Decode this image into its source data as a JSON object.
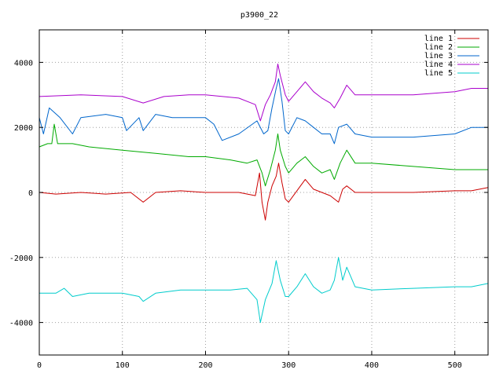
{
  "chart_data": {
    "type": "line",
    "title": "p3900_22",
    "xlabel": "",
    "ylabel": "",
    "xlim": [
      0,
      540
    ],
    "ylim": [
      -5000,
      5000
    ],
    "xticks": [
      0,
      100,
      200,
      300,
      400,
      500
    ],
    "yticks": [
      -4000,
      -2000,
      0,
      2000,
      4000
    ],
    "grid": true,
    "legend_position": "top-right",
    "series": [
      {
        "name": "line 1",
        "color": "#cc0000",
        "points": [
          [
            0,
            0
          ],
          [
            20,
            -50
          ],
          [
            50,
            0
          ],
          [
            80,
            -50
          ],
          [
            110,
            0
          ],
          [
            125,
            -300
          ],
          [
            140,
            0
          ],
          [
            170,
            50
          ],
          [
            200,
            0
          ],
          [
            240,
            0
          ],
          [
            260,
            -100
          ],
          [
            265,
            600
          ],
          [
            268,
            -300
          ],
          [
            272,
            -850
          ],
          [
            275,
            -300
          ],
          [
            280,
            200
          ],
          [
            285,
            500
          ],
          [
            288,
            900
          ],
          [
            292,
            300
          ],
          [
            296,
            -200
          ],
          [
            300,
            -300
          ],
          [
            310,
            50
          ],
          [
            320,
            400
          ],
          [
            330,
            100
          ],
          [
            340,
            0
          ],
          [
            350,
            -100
          ],
          [
            360,
            -300
          ],
          [
            365,
            100
          ],
          [
            370,
            200
          ],
          [
            380,
            0
          ],
          [
            400,
            0
          ],
          [
            450,
            0
          ],
          [
            500,
            50
          ],
          [
            520,
            50
          ],
          [
            540,
            150
          ]
        ]
      },
      {
        "name": "line 2",
        "color": "#00aa00",
        "points": [
          [
            0,
            1400
          ],
          [
            10,
            1500
          ],
          [
            15,
            1500
          ],
          [
            18,
            2100
          ],
          [
            22,
            1500
          ],
          [
            40,
            1500
          ],
          [
            60,
            1400
          ],
          [
            100,
            1300
          ],
          [
            140,
            1200
          ],
          [
            180,
            1100
          ],
          [
            200,
            1100
          ],
          [
            230,
            1000
          ],
          [
            250,
            900
          ],
          [
            262,
            1000
          ],
          [
            268,
            600
          ],
          [
            272,
            200
          ],
          [
            278,
            700
          ],
          [
            284,
            1300
          ],
          [
            287,
            1800
          ],
          [
            290,
            1300
          ],
          [
            296,
            800
          ],
          [
            300,
            600
          ],
          [
            310,
            900
          ],
          [
            320,
            1100
          ],
          [
            330,
            800
          ],
          [
            340,
            600
          ],
          [
            350,
            700
          ],
          [
            355,
            400
          ],
          [
            362,
            900
          ],
          [
            370,
            1300
          ],
          [
            380,
            900
          ],
          [
            400,
            900
          ],
          [
            450,
            800
          ],
          [
            500,
            700
          ],
          [
            540,
            700
          ]
        ]
      },
      {
        "name": "line 3",
        "color": "#0066cc",
        "points": [
          [
            0,
            2300
          ],
          [
            5,
            1800
          ],
          [
            12,
            2600
          ],
          [
            25,
            2300
          ],
          [
            40,
            1800
          ],
          [
            50,
            2300
          ],
          [
            80,
            2400
          ],
          [
            100,
            2300
          ],
          [
            105,
            1900
          ],
          [
            120,
            2300
          ],
          [
            125,
            1900
          ],
          [
            140,
            2400
          ],
          [
            160,
            2300
          ],
          [
            200,
            2300
          ],
          [
            210,
            2100
          ],
          [
            220,
            1600
          ],
          [
            240,
            1800
          ],
          [
            262,
            2200
          ],
          [
            270,
            1800
          ],
          [
            275,
            1900
          ],
          [
            280,
            2600
          ],
          [
            285,
            3200
          ],
          [
            288,
            3500
          ],
          [
            292,
            2800
          ],
          [
            296,
            1900
          ],
          [
            300,
            1800
          ],
          [
            310,
            2300
          ],
          [
            320,
            2200
          ],
          [
            330,
            2000
          ],
          [
            340,
            1800
          ],
          [
            350,
            1800
          ],
          [
            355,
            1500
          ],
          [
            360,
            2000
          ],
          [
            370,
            2100
          ],
          [
            380,
            1800
          ],
          [
            400,
            1700
          ],
          [
            450,
            1700
          ],
          [
            500,
            1800
          ],
          [
            520,
            2000
          ],
          [
            540,
            2000
          ]
        ]
      },
      {
        "name": "line 4",
        "color": "#aa00cc",
        "points": [
          [
            0,
            2950
          ],
          [
            50,
            3000
          ],
          [
            100,
            2950
          ],
          [
            125,
            2750
          ],
          [
            150,
            2950
          ],
          [
            180,
            3000
          ],
          [
            200,
            3000
          ],
          [
            240,
            2900
          ],
          [
            260,
            2700
          ],
          [
            266,
            2200
          ],
          [
            272,
            2700
          ],
          [
            278,
            3000
          ],
          [
            284,
            3400
          ],
          [
            287,
            3950
          ],
          [
            290,
            3600
          ],
          [
            296,
            3000
          ],
          [
            300,
            2800
          ],
          [
            310,
            3100
          ],
          [
            320,
            3400
          ],
          [
            330,
            3100
          ],
          [
            340,
            2900
          ],
          [
            350,
            2750
          ],
          [
            355,
            2600
          ],
          [
            362,
            2900
          ],
          [
            370,
            3300
          ],
          [
            380,
            3000
          ],
          [
            400,
            3000
          ],
          [
            450,
            3000
          ],
          [
            500,
            3100
          ],
          [
            520,
            3200
          ],
          [
            540,
            3200
          ]
        ]
      },
      {
        "name": "line 5",
        "color": "#00cccc",
        "points": [
          [
            0,
            -3100
          ],
          [
            20,
            -3100
          ],
          [
            30,
            -2950
          ],
          [
            40,
            -3200
          ],
          [
            60,
            -3100
          ],
          [
            100,
            -3100
          ],
          [
            120,
            -3200
          ],
          [
            125,
            -3350
          ],
          [
            140,
            -3100
          ],
          [
            170,
            -3000
          ],
          [
            200,
            -3000
          ],
          [
            230,
            -3000
          ],
          [
            250,
            -2950
          ],
          [
            262,
            -3300
          ],
          [
            266,
            -4000
          ],
          [
            272,
            -3300
          ],
          [
            280,
            -2800
          ],
          [
            285,
            -2100
          ],
          [
            290,
            -2700
          ],
          [
            296,
            -3200
          ],
          [
            300,
            -3200
          ],
          [
            310,
            -2900
          ],
          [
            320,
            -2500
          ],
          [
            330,
            -2900
          ],
          [
            340,
            -3100
          ],
          [
            350,
            -3000
          ],
          [
            355,
            -2700
          ],
          [
            360,
            -2000
          ],
          [
            365,
            -2700
          ],
          [
            370,
            -2300
          ],
          [
            380,
            -2900
          ],
          [
            400,
            -3000
          ],
          [
            450,
            -2950
          ],
          [
            500,
            -2900
          ],
          [
            520,
            -2900
          ],
          [
            540,
            -2800
          ]
        ]
      }
    ]
  }
}
